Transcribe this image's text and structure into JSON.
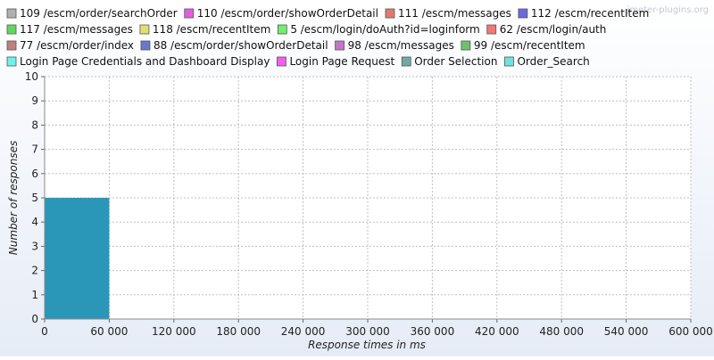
{
  "watermark": "jmeter-plugins.org",
  "chart_data": {
    "type": "bar",
    "xlabel": "Response times in ms",
    "ylabel": "Number of responses",
    "xlim": [
      0,
      600000
    ],
    "ylim": [
      0,
      10
    ],
    "x_ticks": [
      0,
      60000,
      120000,
      180000,
      240000,
      300000,
      360000,
      420000,
      480000,
      540000,
      600000
    ],
    "x_tick_labels": [
      "0",
      "60 000",
      "120 000",
      "180 000",
      "240 000",
      "300 000",
      "360 000",
      "420 000",
      "480 000",
      "540 000",
      "600 000"
    ],
    "y_ticks": [
      0,
      1,
      2,
      3,
      4,
      5,
      6,
      7,
      8,
      9,
      10
    ],
    "y_tick_labels": [
      "0",
      "1",
      "2",
      "3",
      "4",
      "5",
      "6",
      "7",
      "8",
      "9",
      "10"
    ],
    "grid": true,
    "legend_position": "top",
    "legend": [
      {
        "name": "109 /escm/order/searchOrder",
        "color": "#b0b0b0"
      },
      {
        "name": "110 /escm/order/showOrderDetail",
        "color": "#e060e0"
      },
      {
        "name": "111 /escm/messages",
        "color": "#e07a70"
      },
      {
        "name": "112 /escm/recentItem",
        "color": "#6a6ae0"
      },
      {
        "name": "117 /escm/messages",
        "color": "#60d860"
      },
      {
        "name": "118 /escm/recentItem",
        "color": "#e0e070"
      },
      {
        "name": "5 /escm/login/doAuth?id=loginform",
        "color": "#70ee70"
      },
      {
        "name": "62 /escm/login/auth",
        "color": "#f07878"
      },
      {
        "name": "77 /escm/order/index",
        "color": "#c08080"
      },
      {
        "name": "88 /escm/order/showOrderDetail",
        "color": "#6a78c8"
      },
      {
        "name": "98 /escm/messages",
        "color": "#c078c8"
      },
      {
        "name": "99 /escm/recentItem",
        "color": "#70c070"
      },
      {
        "name": "Login Page Credentials and Dashboard Display",
        "color": "#70f0f0"
      },
      {
        "name": "Login Page Request",
        "color": "#f060f0"
      },
      {
        "name": "Order Selection",
        "color": "#70a8a8"
      },
      {
        "name": "Order_Search",
        "color": "#70e0e0"
      }
    ],
    "bars": [
      {
        "x_start": 0,
        "x_end": 60000,
        "value": 5,
        "color": "#2a97b8"
      }
    ]
  }
}
